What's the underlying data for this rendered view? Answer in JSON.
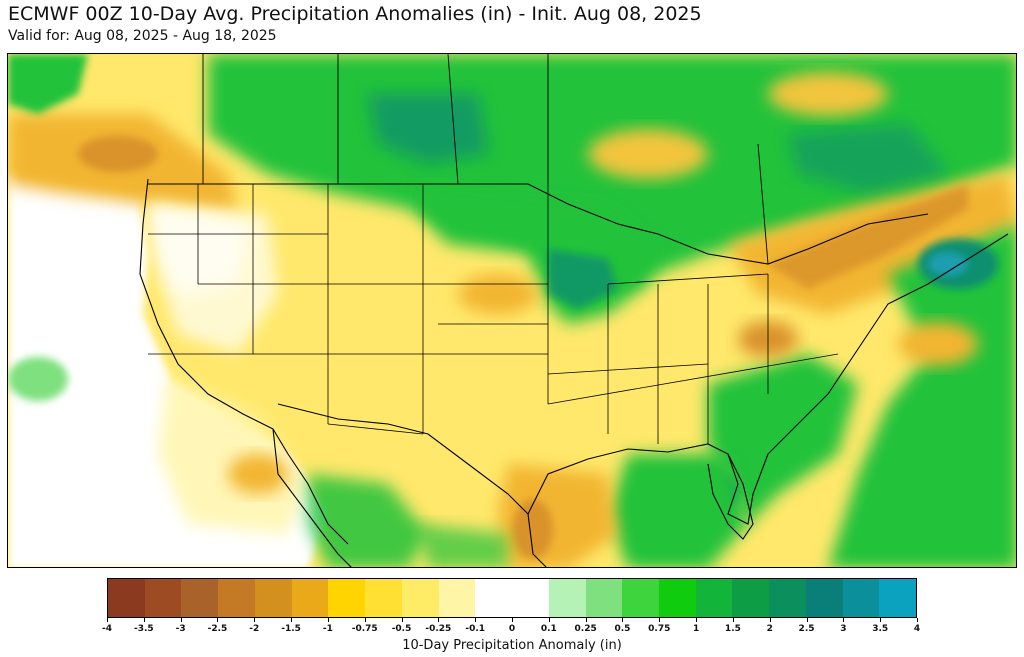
{
  "header": {
    "title": "ECMWF 00Z 10-Day Avg. Precipitation Anomalies (in) - Init. Aug 08, 2025",
    "subtitle": "Valid for: Aug 08, 2025 - Aug 18, 2025"
  },
  "legend": {
    "title": "10-Day Precipitation Anomaly (in)",
    "ticks": [
      "-4",
      "-3.5",
      "-3",
      "-2.5",
      "-2",
      "-1.5",
      "-1",
      "-0.75",
      "-0.5",
      "-0.25",
      "-0.1",
      "0",
      "0.1",
      "0.25",
      "0.5",
      "0.75",
      "1",
      "1.5",
      "2",
      "2.5",
      "3",
      "3.5",
      "4"
    ],
    "colors": [
      "#8b3a1f",
      "#9c4b22",
      "#a8622a",
      "#c47a25",
      "#d4901f",
      "#e9a919",
      "#ffd400",
      "#ffe033",
      "#ffec66",
      "#fff5a6",
      "#ffffff",
      "#ffffff",
      "#b5f2b5",
      "#7fe07f",
      "#3dd43d",
      "#0fcc0f",
      "#12b53a",
      "#0d9d44",
      "#0b8f5c",
      "#0a7f7a",
      "#0a8f9b",
      "#0aa2be"
    ]
  },
  "map": {
    "region": "Continental United States, southern Canada and northern Mexico",
    "palette": {
      "ocean": "#ffffff",
      "land_base": "#ffe86b",
      "dry": "#f2b530",
      "very_dry": "#d9932a",
      "wet_light": "#7fe07f",
      "wet": "#22c23a",
      "wet_heavy": "#0a8f6f",
      "wettest": "#1a9fb0",
      "boundary": "#000000",
      "county": "#b0a070"
    }
  }
}
